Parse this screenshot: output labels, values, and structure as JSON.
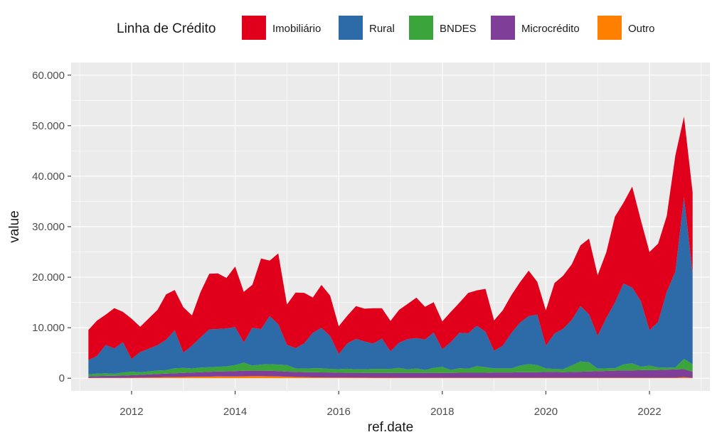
{
  "chart_data": {
    "type": "area",
    "stacked": true,
    "xlabel": "ref.date",
    "ylabel": "value",
    "legend_title": "Linha de Crédito",
    "legend_position": "top",
    "grid": true,
    "x_range": [
      "2010-11",
      "2023-03"
    ],
    "ylim": [
      -2500,
      62500
    ],
    "x_ticks": [
      "2012",
      "2014",
      "2016",
      "2018",
      "2020",
      "2022"
    ],
    "y_ticks": [
      0,
      10000,
      20000,
      30000,
      40000,
      50000,
      60000
    ],
    "y_tick_labels": [
      "0",
      "10.000",
      "20.000",
      "30.000",
      "40.000",
      "50.000",
      "60.000"
    ],
    "x": [
      "2011-03",
      "2011-05",
      "2011-07",
      "2011-09",
      "2011-11",
      "2012-01",
      "2012-03",
      "2012-05",
      "2012-07",
      "2012-09",
      "2012-11",
      "2013-01",
      "2013-03",
      "2013-05",
      "2013-07",
      "2013-09",
      "2013-11",
      "2014-01",
      "2014-03",
      "2014-05",
      "2014-07",
      "2014-09",
      "2014-11",
      "2015-01",
      "2015-03",
      "2015-05",
      "2015-07",
      "2015-09",
      "2015-11",
      "2016-01",
      "2016-03",
      "2016-05",
      "2016-07",
      "2016-09",
      "2016-11",
      "2017-01",
      "2017-03",
      "2017-05",
      "2017-07",
      "2017-09",
      "2017-11",
      "2018-01",
      "2018-03",
      "2018-05",
      "2018-07",
      "2018-09",
      "2018-11",
      "2019-01",
      "2019-03",
      "2019-05",
      "2019-07",
      "2019-09",
      "2019-11",
      "2020-01",
      "2020-03",
      "2020-05",
      "2020-07",
      "2020-09",
      "2020-11",
      "2021-01",
      "2021-03",
      "2021-05",
      "2021-07",
      "2021-09",
      "2021-11",
      "2022-01",
      "2022-03",
      "2022-05",
      "2022-07",
      "2022-09",
      "2022-11"
    ],
    "series": [
      {
        "name": "Outro",
        "color": "#ff7f00",
        "values": [
          50,
          60,
          70,
          80,
          80,
          100,
          120,
          150,
          180,
          200,
          220,
          250,
          280,
          300,
          320,
          340,
          350,
          360,
          380,
          400,
          400,
          380,
          360,
          300,
          250,
          200,
          180,
          160,
          150,
          140,
          130,
          120,
          110,
          100,
          100,
          100,
          90,
          90,
          90,
          90,
          90,
          90,
          90,
          90,
          90,
          90,
          90,
          90,
          90,
          90,
          90,
          90,
          90,
          90,
          90,
          90,
          90,
          90,
          90,
          90,
          90,
          90,
          90,
          90,
          90,
          90,
          90,
          90,
          90,
          200,
          80
        ]
      },
      {
        "name": "Microcrédito",
        "color": "#7f3f98",
        "values": [
          300,
          350,
          400,
          400,
          450,
          500,
          550,
          600,
          650,
          700,
          750,
          800,
          850,
          900,
          950,
          1000,
          1000,
          1050,
          1100,
          1100,
          1100,
          1100,
          1050,
          1000,
          1000,
          1000,
          1000,
          1000,
          1000,
          950,
          950,
          950,
          950,
          950,
          950,
          950,
          950,
          950,
          950,
          950,
          950,
          950,
          950,
          1000,
          1000,
          1000,
          1000,
          1050,
          1050,
          1050,
          1100,
          1100,
          1100,
          1150,
          1150,
          1100,
          1150,
          1200,
          1250,
          1300,
          1350,
          1400,
          1450,
          1450,
          1500,
          1500,
          1550,
          1600,
          1650,
          1600,
          1200
        ]
      },
      {
        "name": "BNDES",
        "color": "#3ba53b",
        "values": [
          400,
          500,
          500,
          400,
          600,
          700,
          500,
          600,
          700,
          700,
          1000,
          1000,
          800,
          900,
          900,
          900,
          1000,
          1200,
          1600,
          1000,
          1200,
          1300,
          1300,
          1300,
          700,
          700,
          800,
          800,
          700,
          700,
          800,
          700,
          700,
          800,
          800,
          800,
          1000,
          700,
          900,
          600,
          1000,
          1200,
          600,
          900,
          800,
          1300,
          1100,
          800,
          800,
          800,
          1300,
          1600,
          1400,
          700,
          600,
          600,
          1300,
          2000,
          1800,
          500,
          500,
          500,
          1200,
          1400,
          700,
          900,
          500,
          400,
          400,
          2000,
          1500
        ]
      },
      {
        "name": "Rural",
        "color": "#2d6aa8",
        "values": [
          2800,
          3500,
          5600,
          5000,
          6000,
          2500,
          4000,
          4500,
          5000,
          6000,
          7500,
          3000,
          4500,
          6000,
          7500,
          7500,
          7500,
          7500,
          4000,
          7500,
          7000,
          9500,
          8000,
          4000,
          4000,
          5000,
          7000,
          8000,
          6500,
          3000,
          5000,
          6000,
          5500,
          5000,
          6000,
          3500,
          5000,
          6000,
          6000,
          6000,
          7000,
          3500,
          5500,
          7000,
          7000,
          8000,
          7000,
          3500,
          4500,
          7000,
          8500,
          9500,
          10000,
          4500,
          7000,
          8000,
          9000,
          11000,
          9500,
          6500,
          10000,
          13000,
          16000,
          15000,
          13000,
          7000,
          9000,
          15000,
          19000,
          32000,
          18000
        ]
      },
      {
        "name": "Imobiliário",
        "color": "#e0001b",
        "values": [
          6000,
          7000,
          6000,
          8000,
          6000,
          8000,
          5000,
          6000,
          7000,
          9000,
          8000,
          9000,
          6000,
          9000,
          11000,
          11000,
          10000,
          12000,
          10000,
          8500,
          14000,
          11000,
          14000,
          8000,
          11000,
          10000,
          7000,
          8500,
          8000,
          5500,
          5500,
          6500,
          6500,
          7000,
          6000,
          6000,
          6500,
          7000,
          8000,
          6500,
          6000,
          5500,
          6000,
          6000,
          8000,
          7000,
          8500,
          6000,
          7000,
          7500,
          8000,
          9000,
          6500,
          7000,
          10000,
          10500,
          11000,
          12000,
          15000,
          12000,
          13000,
          17000,
          16000,
          20000,
          16000,
          15500,
          15500,
          15000,
          23000,
          16000,
          16000
        ]
      }
    ]
  }
}
